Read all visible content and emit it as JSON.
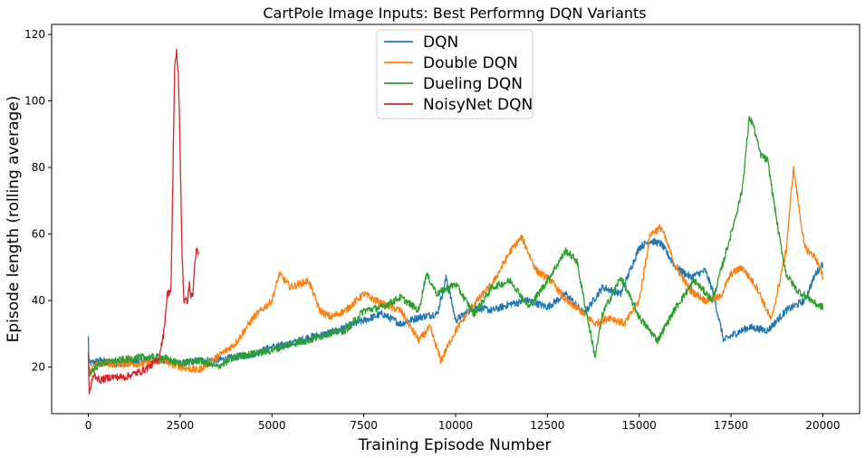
{
  "chart_data": {
    "type": "line",
    "title": "CartPole Image Inputs: Best Performng DQN Variants",
    "xlabel": "Training Episode Number",
    "ylabel": "Episode length (rolling average)",
    "xlim": [
      -1000,
      21000
    ],
    "ylim": [
      6,
      123
    ],
    "xticks": [
      0,
      2500,
      5000,
      7500,
      10000,
      12500,
      15000,
      17500,
      20000
    ],
    "xtick_labels": [
      "0",
      "2500",
      "5000",
      "7500",
      "10000",
      "12500",
      "15000",
      "17500",
      "20000"
    ],
    "yticks": [
      20,
      40,
      60,
      80,
      100,
      120
    ],
    "ytick_labels": [
      "20",
      "40",
      "60",
      "80",
      "100",
      "120"
    ],
    "legend_position": "top-center",
    "grid": false,
    "series": [
      {
        "name": "DQN",
        "color": "#1f77b4",
        "x": [
          0,
          20,
          300,
          800,
          1500,
          2000,
          2500,
          3000,
          3500,
          4000,
          4500,
          5000,
          5500,
          6000,
          6500,
          7000,
          7500,
          8000,
          8500,
          9000,
          9500,
          9750,
          10000,
          10500,
          11000,
          11500,
          12000,
          12500,
          13000,
          13500,
          14000,
          14500,
          15000,
          15300,
          15600,
          16000,
          16400,
          16800,
          17000,
          17300,
          17600,
          18000,
          18500,
          19000,
          19500,
          19800,
          20000
        ],
        "values": [
          29,
          21,
          22,
          21,
          22,
          22,
          21,
          22,
          22,
          23,
          24,
          26,
          27,
          29,
          30,
          32,
          34,
          36,
          33,
          35,
          36,
          47,
          34,
          38,
          37,
          39,
          40,
          38,
          42,
          36,
          44,
          42,
          56,
          58,
          57,
          50,
          47,
          49,
          43,
          28,
          30,
          32,
          31,
          37,
          40,
          48,
          51
        ]
      },
      {
        "name": "Double DQN",
        "color": "#ff7f0e",
        "x": [
          0,
          20,
          300,
          800,
          1500,
          2000,
          2500,
          3000,
          3500,
          4000,
          4500,
          5000,
          5200,
          5500,
          6000,
          6300,
          6600,
          7000,
          7500,
          8000,
          8500,
          9000,
          9300,
          9600,
          10000,
          10500,
          11000,
          11500,
          11800,
          12200,
          12600,
          13000,
          13400,
          13800,
          14200,
          14600,
          15000,
          15300,
          15600,
          16000,
          16400,
          16800,
          17200,
          17500,
          17800,
          18200,
          18600,
          19000,
          19200,
          19500,
          19800,
          20000
        ],
        "values": [
          25,
          19,
          21,
          21,
          21,
          22,
          20,
          19,
          23,
          27,
          35,
          40,
          48,
          44,
          46,
          37,
          35,
          37,
          42,
          39,
          37,
          28,
          32,
          22,
          31,
          39,
          45,
          55,
          59,
          49,
          46,
          40,
          37,
          33,
          35,
          33,
          40,
          60,
          62,
          50,
          43,
          40,
          41,
          48,
          50,
          44,
          34,
          55,
          80,
          56,
          53,
          47
        ]
      },
      {
        "name": "Dueling DQN",
        "color": "#2ca02c",
        "x": [
          0,
          20,
          300,
          800,
          1500,
          2000,
          2500,
          3000,
          3500,
          4000,
          4500,
          5000,
          5500,
          6000,
          6500,
          7000,
          7500,
          8000,
          8500,
          9000,
          9200,
          9500,
          10000,
          10500,
          11000,
          11500,
          12000,
          12500,
          13000,
          13300,
          13500,
          13800,
          14000,
          14500,
          15000,
          15500,
          16000,
          16500,
          17000,
          17500,
          17800,
          18000,
          18100,
          18300,
          18500,
          18800,
          19000,
          19300,
          19600,
          19800,
          20000
        ],
        "values": [
          24,
          18,
          21,
          22,
          23,
          23,
          21,
          22,
          20,
          23,
          24,
          25,
          27,
          28,
          30,
          31,
          37,
          38,
          41,
          37,
          48,
          42,
          45,
          36,
          44,
          46,
          38,
          46,
          55,
          52,
          40,
          23,
          36,
          47,
          35,
          28,
          38,
          46,
          40,
          60,
          73,
          95,
          93,
          84,
          82,
          60,
          48,
          43,
          41,
          39,
          38
        ]
      },
      {
        "name": "NoisyNet DQN",
        "color": "#d62728",
        "x": [
          0,
          20,
          150,
          300,
          600,
          1000,
          1500,
          1900,
          2050,
          2150,
          2250,
          2300,
          2350,
          2400,
          2450,
          2500,
          2550,
          2600,
          2700,
          2750,
          2800,
          2850,
          2900,
          2950,
          3000
        ],
        "values": [
          24,
          12,
          18,
          16,
          17,
          17,
          19,
          22,
          30,
          42,
          43,
          75,
          110,
          115,
          108,
          85,
          55,
          40,
          40,
          45,
          41,
          42,
          52,
          55,
          54
        ]
      }
    ]
  }
}
